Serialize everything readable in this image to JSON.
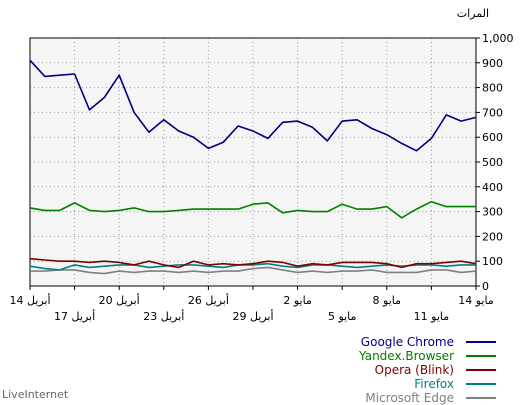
{
  "chart_data": {
    "type": "line",
    "ylabel": "المرات",
    "ylim": [
      0,
      1000
    ],
    "y_ticks": [
      "0",
      "100",
      "200",
      "300",
      "400",
      "500",
      "600",
      "700",
      "800",
      "900",
      "1,000"
    ],
    "x_tick_labels_upper": [
      "14 مايو",
      "8 مايو",
      "2 مايو",
      "26 أبريل",
      "20 أبريل",
      "14 أبريل"
    ],
    "x_tick_labels_lower": [
      "11 مايو",
      "5 مايو",
      "29 أبريل",
      "23 أبريل",
      "17 أبريل"
    ],
    "x_direction": "right-to-left",
    "grid": true,
    "legend_position": "bottom-right",
    "series": [
      {
        "name": "Google Chrome",
        "color": "#000080",
        "values": [
          910,
          845,
          850,
          855,
          710,
          760,
          850,
          700,
          620,
          670,
          625,
          600,
          555,
          580,
          645,
          625,
          595,
          660,
          665,
          640,
          585,
          665,
          670,
          635,
          610,
          575,
          545,
          595,
          690,
          665,
          680
        ]
      },
      {
        "name": "Yandex.Browser",
        "color": "#008000",
        "values": [
          315,
          305,
          305,
          335,
          305,
          300,
          305,
          315,
          300,
          300,
          305,
          310,
          310,
          310,
          310,
          330,
          335,
          295,
          305,
          300,
          300,
          330,
          310,
          310,
          320,
          275,
          310,
          340,
          320,
          320,
          320
        ]
      },
      {
        "name": "Opera (Blink)",
        "color": "#800000",
        "values": [
          110,
          105,
          100,
          100,
          95,
          100,
          95,
          85,
          100,
          85,
          75,
          100,
          85,
          90,
          85,
          90,
          100,
          95,
          80,
          90,
          85,
          95,
          95,
          95,
          90,
          75,
          90,
          90,
          95,
          100,
          90
        ]
      },
      {
        "name": "Firefox",
        "color": "#008080",
        "values": [
          80,
          70,
          65,
          85,
          75,
          80,
          85,
          85,
          75,
          80,
          85,
          85,
          80,
          75,
          85,
          85,
          90,
          80,
          75,
          85,
          85,
          80,
          75,
          80,
          85,
          80,
          85,
          85,
          80,
          85,
          85
        ]
      },
      {
        "name": "Microsoft Edge",
        "color": "#808080",
        "values": [
          60,
          60,
          65,
          65,
          55,
          50,
          60,
          55,
          60,
          60,
          55,
          60,
          55,
          60,
          60,
          70,
          75,
          65,
          55,
          60,
          55,
          60,
          60,
          65,
          55,
          55,
          55,
          65,
          65,
          55,
          60
        ]
      }
    ]
  },
  "footer": {
    "brand": "LiveInternet"
  }
}
